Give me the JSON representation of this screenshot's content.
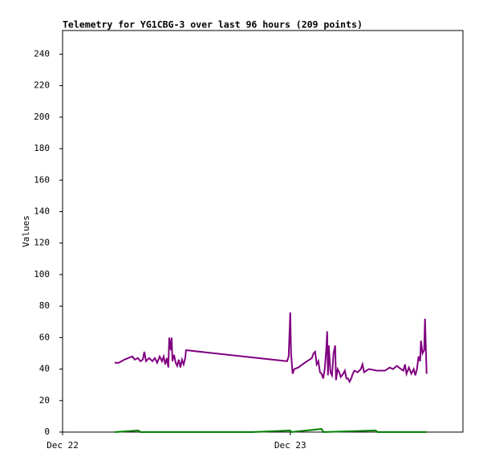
{
  "chart_data": {
    "type": "line",
    "title": "Telemetry for YG1CBG-3 over last 96 hours (209 points)",
    "ylabel": "Values",
    "xlim": [
      0,
      42.2
    ],
    "ylim": [
      0,
      255
    ],
    "xticks": [
      {
        "value": 0,
        "label": "Dec 22"
      },
      {
        "value": 24,
        "label": "Dec 23"
      }
    ],
    "yticks": [
      0,
      20,
      40,
      60,
      80,
      100,
      120,
      140,
      160,
      180,
      200,
      220,
      240
    ],
    "series": [
      {
        "color": "#800080",
        "x": [
          5.49,
          5.92,
          6.51,
          6.93,
          7.35,
          7.61,
          7.94,
          8.2,
          8.45,
          8.62,
          8.79,
          9.13,
          9.47,
          9.72,
          9.97,
          10.23,
          10.48,
          10.65,
          10.82,
          10.99,
          11.15,
          11.24,
          11.41,
          11.49,
          11.58,
          11.75,
          11.92,
          12.08,
          12.25,
          12.42,
          12.59,
          12.76,
          12.93,
          13.01,
          23.66,
          23.83,
          24.0,
          24.08,
          24.25,
          24.42,
          24.85,
          25.52,
          26.28,
          26.45,
          26.62,
          26.79,
          26.96,
          27.13,
          27.3,
          27.47,
          27.63,
          27.8,
          27.89,
          27.97,
          28.06,
          28.23,
          28.4,
          28.56,
          28.73,
          28.82,
          28.99,
          29.16,
          29.32,
          29.58,
          29.75,
          29.92,
          30.09,
          30.25,
          30.42,
          30.59,
          30.76,
          31.1,
          31.44,
          31.61,
          31.78,
          32.28,
          33.13,
          33.97,
          34.48,
          34.82,
          35.24,
          35.66,
          35.92,
          36.09,
          36.25,
          36.51,
          36.76,
          37.01,
          37.18,
          37.35,
          37.52,
          37.69,
          37.77,
          37.94,
          38.11,
          38.2,
          38.28,
          38.37
        ],
        "values": [
          44,
          44,
          46,
          47,
          48,
          46,
          47,
          45,
          46,
          51,
          45,
          47,
          45,
          47,
          44,
          48,
          45,
          48,
          43,
          47,
          41,
          60,
          52,
          60,
          45,
          49,
          44,
          42,
          46,
          41,
          46,
          43,
          47,
          52,
          45,
          48,
          76,
          50,
          37,
          40,
          41,
          44,
          47,
          50,
          51,
          43,
          45,
          38,
          37,
          34,
          40,
          53,
          64,
          36,
          55,
          38,
          36,
          50,
          55,
          33,
          40,
          38,
          35,
          37,
          39,
          34,
          34,
          32,
          34,
          37,
          39,
          38,
          40,
          43,
          38,
          40,
          39,
          39,
          41,
          40,
          42,
          40,
          39,
          43,
          37,
          41,
          37,
          40,
          36,
          40,
          48,
          45,
          58,
          50,
          52,
          72,
          55,
          37
        ]
      },
      {
        "color": "#008000",
        "x": [
          5.49,
          8.0,
          8.2,
          20,
          24,
          24.1,
          27.3,
          27.5,
          33,
          33.2,
          38.37
        ],
        "values": [
          0,
          1,
          0,
          0,
          1,
          0,
          2,
          0,
          1,
          0,
          0
        ]
      }
    ]
  }
}
